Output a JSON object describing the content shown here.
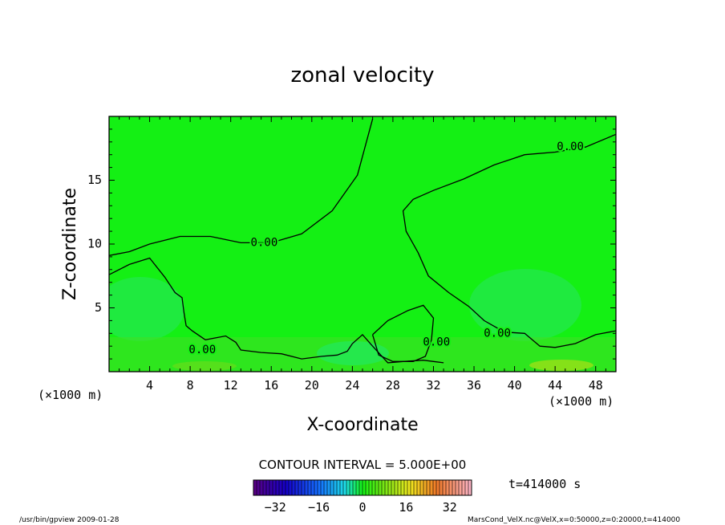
{
  "chart_data": {
    "type": "contour",
    "title": "zonal velocity",
    "xlabel": "X-coordinate",
    "ylabel": "Z-coordinate",
    "x_unit_left": "(×1000 m)",
    "x_unit_right": "(×1000 m)",
    "xlim": [
      0,
      50
    ],
    "ylim": [
      0,
      20
    ],
    "xticks": [
      4,
      8,
      12,
      16,
      20,
      24,
      28,
      32,
      36,
      40,
      44,
      48
    ],
    "yticks": [
      5,
      10,
      15
    ],
    "contour_label": "0.00",
    "contour_interval": "CONTOUR INTERVAL = 5.000E+00",
    "colorbar": {
      "min": -40,
      "max": 40,
      "ticks": [
        -32,
        -16,
        0,
        16,
        32
      ]
    },
    "field_range_visible": [
      -5,
      5
    ],
    "time_label": "t=414000 s",
    "zero_contours": [
      {
        "name": "upper-left",
        "points": [
          [
            0,
            9.1
          ],
          [
            2,
            9.4
          ],
          [
            4,
            10.0
          ],
          [
            7,
            10.6
          ],
          [
            10,
            10.6
          ],
          [
            13,
            10.1
          ],
          [
            16,
            10.1
          ],
          [
            19,
            10.8
          ],
          [
            22,
            12.6
          ],
          [
            24.5,
            15.4
          ],
          [
            26,
            19.8
          ]
        ]
      },
      {
        "name": "right-column",
        "points": [
          [
            50,
            18.6
          ],
          [
            47,
            17.6
          ],
          [
            44,
            17.2
          ],
          [
            41,
            17.0
          ],
          [
            38,
            16.2
          ],
          [
            35,
            15.1
          ],
          [
            32,
            14.2
          ],
          [
            30,
            13.5
          ],
          [
            29,
            12.6
          ],
          [
            29.3,
            11.0
          ],
          [
            30.5,
            9.3
          ],
          [
            31.5,
            7.5
          ],
          [
            33.5,
            6.2
          ],
          [
            35.5,
            5.1
          ],
          [
            37,
            4.0
          ],
          [
            39,
            3.1
          ],
          [
            41,
            3.0
          ],
          [
            42.5,
            2.0
          ],
          [
            44,
            1.9
          ],
          [
            46,
            2.2
          ],
          [
            48,
            2.9
          ],
          [
            50,
            3.2
          ]
        ]
      },
      {
        "name": "lower-left",
        "points": [
          [
            0,
            7.6
          ],
          [
            2,
            8.4
          ],
          [
            4,
            8.9
          ],
          [
            5.5,
            7.4
          ],
          [
            6.5,
            6.2
          ],
          [
            7.2,
            5.8
          ],
          [
            7.4,
            4.6
          ],
          [
            7.6,
            3.6
          ],
          [
            8.2,
            3.2
          ],
          [
            9.5,
            2.5
          ],
          [
            11.5,
            2.8
          ],
          [
            12.5,
            2.3
          ],
          [
            13,
            1.7
          ],
          [
            15,
            1.5
          ],
          [
            17,
            1.4
          ],
          [
            19,
            1.0
          ],
          [
            21,
            1.2
          ],
          [
            22.5,
            1.3
          ],
          [
            23.5,
            1.6
          ],
          [
            24,
            2.2
          ],
          [
            25,
            2.9
          ],
          [
            26,
            2.0
          ],
          [
            27.5,
            0.7
          ],
          [
            29,
            0.8
          ],
          [
            31,
            0.9
          ],
          [
            32,
            0.8
          ],
          [
            33,
            0.7
          ]
        ]
      },
      {
        "name": "bump-28",
        "points": [
          [
            26,
            2.9
          ],
          [
            27.5,
            4.0
          ],
          [
            29.5,
            4.8
          ],
          [
            31,
            5.2
          ],
          [
            32,
            4.2
          ],
          [
            31.8,
            2.5
          ],
          [
            31.2,
            1.2
          ],
          [
            30,
            0.8
          ],
          [
            28,
            0.8
          ],
          [
            26.6,
            1.3
          ],
          [
            26,
            2.9
          ]
        ]
      }
    ],
    "contour_label_positions": [
      {
        "x": 15.3,
        "y": 10.1
      },
      {
        "x": 45.5,
        "y": 17.6
      },
      {
        "x": 9.2,
        "y": 1.7
      },
      {
        "x": 32.3,
        "y": 2.3
      },
      {
        "x": 38.3,
        "y": 3.0
      }
    ],
    "colors": {
      "background_field": "#14f014",
      "frame": "#000000"
    }
  },
  "footer": {
    "left": "/usr/bin/gpview   2009-01-28",
    "right": "MarsCond_VelX.nc@VelX,x=0:50000,z=0:20000,t=414000"
  }
}
